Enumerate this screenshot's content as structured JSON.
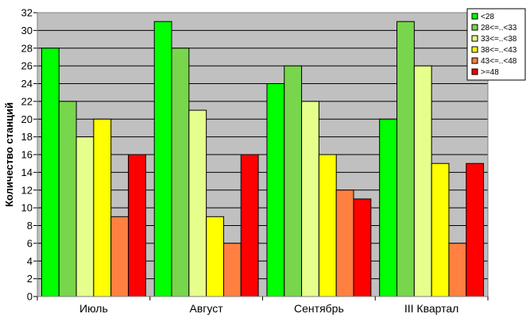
{
  "chart_data": {
    "type": "bar",
    "title": "",
    "xlabel": "",
    "ylabel": "Количество станций",
    "ylim": [
      0,
      32
    ],
    "yticks": [
      0,
      2,
      4,
      6,
      8,
      10,
      12,
      14,
      16,
      18,
      20,
      22,
      24,
      26,
      28,
      30,
      32
    ],
    "grid": "horizontal",
    "legend_position": "top-right",
    "plot_background": "#c0c0c0",
    "categories": [
      "Июль",
      "Август",
      "Сентябрь",
      "III Квартал"
    ],
    "series": [
      {
        "name": "<28",
        "color": "#00ff00",
        "values": [
          28,
          31,
          24,
          20
        ]
      },
      {
        "name": "28<=..<33",
        "color": "#77d64b",
        "values": [
          22,
          28,
          26,
          31
        ]
      },
      {
        "name": "33<=..<38",
        "color": "#e6ff8c",
        "values": [
          18,
          21,
          22,
          26
        ]
      },
      {
        "name": "38<=..<43",
        "color": "#ffff00",
        "values": [
          20,
          9,
          16,
          15
        ]
      },
      {
        "name": "43<=..<48",
        "color": "#ff8040",
        "values": [
          9,
          6,
          12,
          6
        ]
      },
      {
        "name": ">=48",
        "color": "#ff0000",
        "values": [
          16,
          16,
          11,
          15
        ]
      }
    ]
  }
}
